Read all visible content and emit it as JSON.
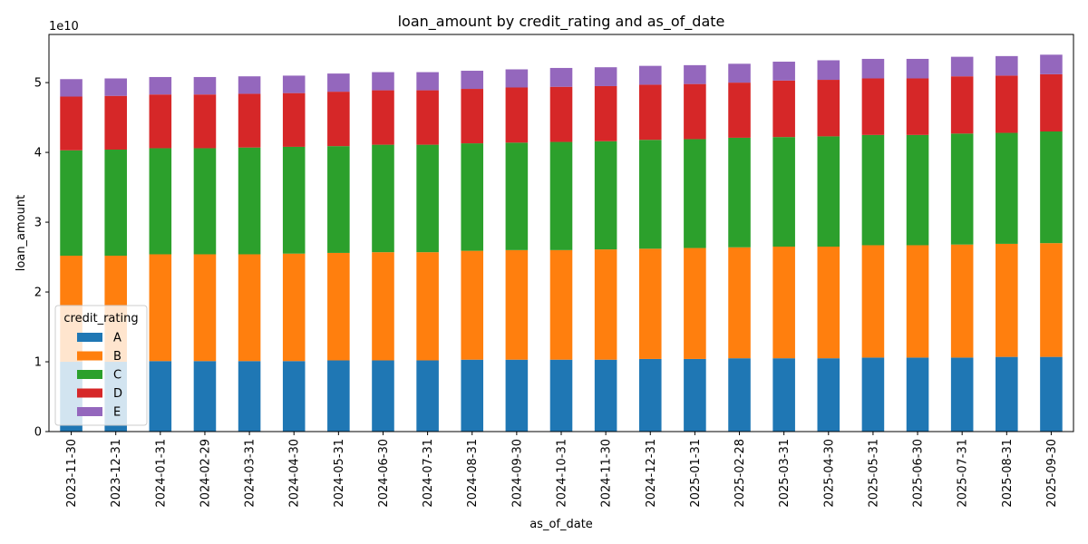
{
  "chart_data": {
    "type": "bar",
    "stacked": true,
    "title": "loan_amount by credit_rating and as_of_date",
    "xlabel": "as_of_date",
    "ylabel": "loan_amount",
    "y_offset_text": "1e10",
    "y_ticks": [
      0,
      1,
      2,
      3,
      4,
      5
    ],
    "y_tick_labels": [
      "0",
      "1",
      "2",
      "3",
      "4",
      "5"
    ],
    "ylim": [
      0,
      5.69
    ],
    "y_scale_note": "values in units of 1e10",
    "grid": false,
    "legend": {
      "title": "credit_rating",
      "placement": "lower-left"
    },
    "categories": [
      "2023-11-30",
      "2023-12-31",
      "2024-01-31",
      "2024-02-29",
      "2024-03-31",
      "2024-04-30",
      "2024-05-31",
      "2024-06-30",
      "2024-07-31",
      "2024-08-31",
      "2024-09-30",
      "2024-10-31",
      "2024-11-30",
      "2024-12-31",
      "2025-01-31",
      "2025-02-28",
      "2025-03-31",
      "2025-04-30",
      "2025-05-31",
      "2025-06-30",
      "2025-07-31",
      "2025-08-31",
      "2025-09-30"
    ],
    "series": [
      {
        "name": "A",
        "color": "#1f77b4",
        "values": [
          1.0,
          1.0,
          1.01,
          1.01,
          1.01,
          1.01,
          1.02,
          1.02,
          1.02,
          1.03,
          1.03,
          1.03,
          1.03,
          1.04,
          1.04,
          1.05,
          1.05,
          1.05,
          1.06,
          1.06,
          1.06,
          1.07,
          1.07
        ]
      },
      {
        "name": "B",
        "color": "#ff7f0e",
        "values": [
          1.52,
          1.52,
          1.53,
          1.53,
          1.53,
          1.54,
          1.54,
          1.55,
          1.55,
          1.56,
          1.57,
          1.57,
          1.58,
          1.58,
          1.59,
          1.59,
          1.6,
          1.6,
          1.61,
          1.61,
          1.62,
          1.62,
          1.63
        ]
      },
      {
        "name": "C",
        "color": "#2ca02c",
        "values": [
          1.51,
          1.52,
          1.52,
          1.52,
          1.53,
          1.53,
          1.53,
          1.54,
          1.54,
          1.54,
          1.54,
          1.55,
          1.55,
          1.56,
          1.56,
          1.57,
          1.57,
          1.58,
          1.58,
          1.58,
          1.59,
          1.59,
          1.6
        ]
      },
      {
        "name": "D",
        "color": "#d62728",
        "values": [
          0.77,
          0.77,
          0.77,
          0.77,
          0.77,
          0.77,
          0.78,
          0.78,
          0.78,
          0.78,
          0.79,
          0.79,
          0.79,
          0.79,
          0.79,
          0.79,
          0.81,
          0.81,
          0.81,
          0.81,
          0.82,
          0.82,
          0.82
        ]
      },
      {
        "name": "E",
        "color": "#9467bd",
        "values": [
          0.25,
          0.25,
          0.25,
          0.25,
          0.25,
          0.25,
          0.26,
          0.26,
          0.26,
          0.26,
          0.26,
          0.27,
          0.27,
          0.27,
          0.27,
          0.27,
          0.27,
          0.28,
          0.28,
          0.28,
          0.28,
          0.28,
          0.28
        ]
      }
    ]
  }
}
